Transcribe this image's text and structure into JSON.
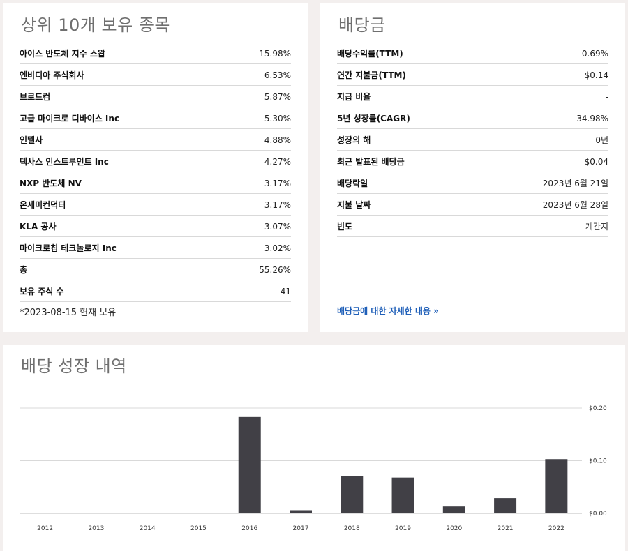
{
  "holdings": {
    "title": "상위 10개 보유 종목",
    "rows": [
      {
        "label": "아이스 반도체 지수 스왑",
        "value": "15.98%"
      },
      {
        "label": "엔비디아 주식회사",
        "value": "6.53%"
      },
      {
        "label": "브로드컴",
        "value": "5.87%"
      },
      {
        "label": "고급 마이크로 디바이스 Inc",
        "value": "5.30%"
      },
      {
        "label": "인텔사",
        "value": "4.88%"
      },
      {
        "label": "텍사스 인스트루먼트 Inc",
        "value": "4.27%"
      },
      {
        "label": "NXP 반도체 NV",
        "value": "3.17%"
      },
      {
        "label": "온세미컨덕터",
        "value": "3.17%"
      },
      {
        "label": "KLA 공사",
        "value": "3.07%"
      },
      {
        "label": "마이크로칩 테크놀로지 Inc",
        "value": "3.02%"
      },
      {
        "label": "총",
        "value": "55.26%"
      },
      {
        "label": "보유 주식 수",
        "value": "41"
      }
    ],
    "footnote": "*2023-08-15 현재 보유"
  },
  "dividends": {
    "title": "배당금",
    "rows": [
      {
        "label": "배당수익률(TTM)",
        "value": "0.69%"
      },
      {
        "label": "연간 지불금(TTM)",
        "value": "$0.14"
      },
      {
        "label": "지급 비율",
        "value": "-"
      },
      {
        "label": "5년 성장률(CAGR)",
        "value": "34.98%"
      },
      {
        "label": "성장의 해",
        "value": "0년"
      },
      {
        "label": "최근 발표된 배당금",
        "value": "$0.04"
      },
      {
        "label": "배당락일",
        "value": "2023년 6월 21일"
      },
      {
        "label": "지불 날짜",
        "value": "2023년 6월 28일"
      },
      {
        "label": "빈도",
        "value": "계간지"
      }
    ],
    "more_link": "배당금에 대한 자세한 내용 »"
  },
  "growth": {
    "title": "배당 성장 내역"
  },
  "colors": {
    "bar": "#414046",
    "link": "#1f5fb8",
    "title": "#6f6f6f",
    "background": "#f3efee"
  },
  "chart_data": {
    "type": "bar",
    "categories": [
      "2012",
      "2013",
      "2014",
      "2015",
      "2016",
      "2017",
      "2018",
      "2019",
      "2020",
      "2021",
      "2022"
    ],
    "values": [
      0,
      0,
      0,
      0,
      0.183,
      0.006,
      0.071,
      0.068,
      0.013,
      0.029,
      0.103
    ],
    "ylim": [
      0,
      0.2
    ],
    "yticks": [
      0.0,
      0.1,
      0.2
    ],
    "ytick_labels": [
      "$0.00",
      "$0.10",
      "$0.20"
    ],
    "title": "",
    "xlabel": "",
    "ylabel": "",
    "grid": true,
    "yaxis_position": "right"
  }
}
